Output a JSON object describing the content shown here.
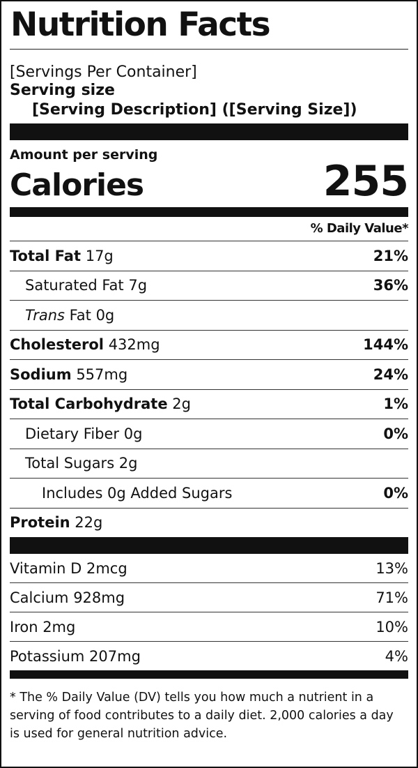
{
  "title": "Nutrition Facts",
  "servings_per_container": "[Servings Per Container]",
  "serving_size_label": "Serving size",
  "serving_description": "[Serving Description] ([Serving Size])",
  "amount_per_serving": "Amount per serving",
  "calories_label": "Calories",
  "calories_value": "255",
  "daily_value_header": "% Daily Value*",
  "nutrients": {
    "total_fat": {
      "label": "Total Fat",
      "amount": "17g",
      "dv": "21%"
    },
    "saturated_fat": {
      "label": "Saturated Fat 7g",
      "dv": "36%"
    },
    "trans_fat": {
      "label_italic": "Trans",
      "label_rest": "Fat 0g"
    },
    "cholesterol": {
      "label": "Cholesterol",
      "amount": "432mg",
      "dv": "144%"
    },
    "sodium": {
      "label": "Sodium",
      "amount": "557mg",
      "dv": "24%"
    },
    "total_carbohydrate": {
      "label": "Total Carbohydrate",
      "amount": "2g",
      "dv": "1%"
    },
    "dietary_fiber": {
      "label": "Dietary Fiber 0g",
      "dv": "0%"
    },
    "total_sugars": {
      "label": "Total Sugars 2g"
    },
    "added_sugars": {
      "label": "Includes 0g Added Sugars",
      "dv": "0%"
    },
    "protein": {
      "label": "Protein",
      "amount": "22g"
    }
  },
  "vitamins": [
    {
      "label": "Vitamin D 2mcg",
      "dv": "13%"
    },
    {
      "label": "Calcium 928mg",
      "dv": "71%"
    },
    {
      "label": "Iron 2mg",
      "dv": "10%"
    },
    {
      "label": "Potassium 207mg",
      "dv": "4%"
    }
  ],
  "footnote": "* The % Daily Value (DV) tells you how much a nutrient in a serving of food contributes to a daily diet. 2,000 calories a day is used for general nutrition advice."
}
